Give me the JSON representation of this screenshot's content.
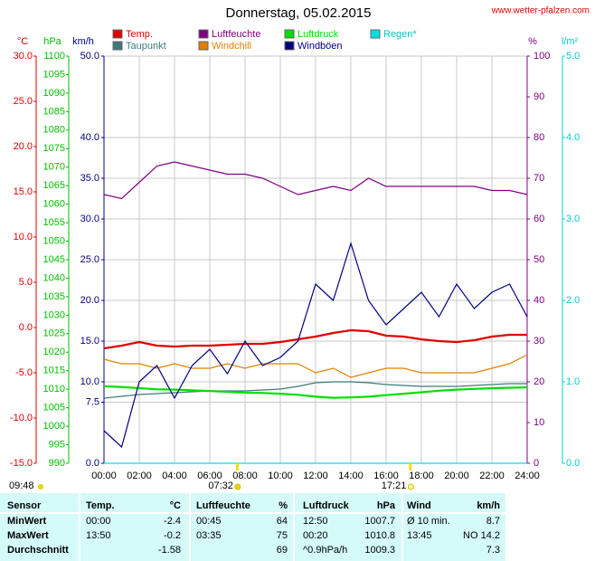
{
  "chart_data": {
    "type": "line",
    "title": "Donnerstag, 05.02.2015",
    "source": "www.wetter-pfalzen.com",
    "x": [
      0,
      1,
      2,
      3,
      4,
      5,
      6,
      7,
      8,
      9,
      10,
      11,
      12,
      13,
      14,
      15,
      16,
      17,
      18,
      19,
      20,
      21,
      22,
      23,
      24
    ],
    "xlim": [
      0,
      24
    ],
    "xticks": [
      {
        "value": 0,
        "label": "00:00"
      },
      {
        "value": 2,
        "label": "02:00"
      },
      {
        "value": 4,
        "label": "04:00"
      },
      {
        "value": 6,
        "label": "06:00"
      },
      {
        "value": 8,
        "label": "08:00"
      },
      {
        "value": 10,
        "label": "10:00"
      },
      {
        "value": 12,
        "label": "12:00"
      },
      {
        "value": 14,
        "label": "14:00"
      },
      {
        "value": 16,
        "label": "16:00"
      },
      {
        "value": 18,
        "label": "18:00"
      },
      {
        "value": 20,
        "label": "20:00"
      },
      {
        "value": 22,
        "label": "22:00"
      },
      {
        "value": 24,
        "label": "24:00"
      }
    ],
    "grid": true,
    "y_axes": [
      {
        "label": "°C",
        "color": "#e00000",
        "lim": [
          -15,
          30
        ],
        "ticks": [
          {
            "value": 30,
            "label": "30.0"
          },
          {
            "value": 25,
            "label": "25.0"
          },
          {
            "value": 20,
            "label": "20.0"
          },
          {
            "value": 15,
            "label": "15.0"
          },
          {
            "value": 10,
            "label": "10.0"
          },
          {
            "value": 5,
            "label": "5.0"
          },
          {
            "value": 0,
            "label": "0.0"
          },
          {
            "value": -5,
            "label": "-5.0"
          },
          {
            "value": -10,
            "label": "-10.0"
          },
          {
            "value": -15,
            "label": "-15.0"
          }
        ]
      },
      {
        "label": "hPa",
        "color": "#00c000",
        "lim": [
          990,
          1100
        ],
        "ticks": [
          1100,
          1095,
          1090,
          1085,
          1080,
          1075,
          1070,
          1065,
          1060,
          1055,
          1050,
          1045,
          1040,
          1035,
          1030,
          1025,
          1020,
          1015,
          1010,
          1005,
          1000,
          995,
          990
        ]
      },
      {
        "label": "km/h",
        "color": "#000080",
        "lim": [
          0,
          50
        ],
        "ticks": [
          {
            "value": 50,
            "label": "50.0"
          },
          {
            "value": 40,
            "label": "40.0"
          },
          {
            "value": 35,
            "label": "35.0"
          },
          {
            "value": 30,
            "label": "30.0"
          },
          {
            "value": 25,
            "label": "25.0"
          },
          {
            "value": 20,
            "label": "20.0"
          },
          {
            "value": 15,
            "label": "15.0"
          },
          {
            "value": 10,
            "label": "10.0"
          },
          7.5,
          {
            "value": 0,
            "label": "0.0"
          }
        ]
      },
      {
        "label": "%",
        "color": "#800080",
        "lim": [
          0,
          100
        ],
        "ticks": [
          100,
          90,
          80,
          70,
          60,
          50,
          40,
          30,
          20,
          10,
          0
        ]
      },
      {
        "label": "l/m²",
        "color": "#00d0d0",
        "lim": [
          0,
          5
        ],
        "ticks": [
          {
            "value": 5,
            "label": "5.0"
          },
          {
            "value": 4,
            "label": "4.0"
          },
          {
            "value": 3,
            "label": "3.0"
          },
          {
            "value": 2,
            "label": "2.0"
          },
          {
            "value": 1,
            "label": "1.0"
          },
          {
            "value": 0,
            "label": "0.0"
          }
        ]
      }
    ],
    "series": [
      {
        "name": "Temp.",
        "color": "#e00000",
        "axis": 0,
        "values": [
          -2.3,
          -2.0,
          -1.6,
          -2.0,
          -2.1,
          -2.0,
          -2.0,
          -1.9,
          -1.8,
          -1.8,
          -1.6,
          -1.3,
          -1.0,
          -0.6,
          -0.3,
          -0.4,
          -0.9,
          -1.0,
          -1.3,
          -1.5,
          -1.6,
          -1.4,
          -1.0,
          -0.8,
          -0.8
        ]
      },
      {
        "name": "Taupunkt",
        "color": "#3d7a7a",
        "axis": 0,
        "values": [
          -7.8,
          -7.6,
          -7.4,
          -7.3,
          -7.2,
          -7.1,
          -7.0,
          -7.0,
          -7.0,
          -6.9,
          -6.8,
          -6.5,
          -6.1,
          -6.0,
          -6.0,
          -6.1,
          -6.3,
          -6.4,
          -6.5,
          -6.5,
          -6.5,
          -6.4,
          -6.3,
          -6.2,
          -6.2
        ]
      },
      {
        "name": "Luftfeuchte",
        "color": "#800080",
        "axis": 3,
        "values": [
          66,
          65,
          69,
          73,
          74,
          73,
          72,
          71,
          71,
          70,
          68,
          66,
          67,
          68,
          67,
          70,
          68,
          68,
          68,
          68,
          68,
          68,
          67,
          67,
          66
        ]
      },
      {
        "name": "Windchill",
        "color": "#e08000",
        "axis": 0,
        "values": [
          -3.5,
          -4,
          -4,
          -4.5,
          -4,
          -4.5,
          -4.5,
          -4,
          -4.5,
          -4,
          -4,
          -4,
          -5,
          -4.5,
          -5.5,
          -5,
          -4.5,
          -4.5,
          -5,
          -5,
          -5,
          -5,
          -4.5,
          -4,
          -3
        ]
      },
      {
        "name": "Luftdruck",
        "color": "#00e000",
        "axis": 1,
        "values": [
          1010.8,
          1010.6,
          1010.3,
          1010.0,
          1009.9,
          1009.7,
          1009.5,
          1009.3,
          1009.1,
          1009.0,
          1008.8,
          1008.5,
          1008.0,
          1007.7,
          1007.8,
          1008.0,
          1008.4,
          1008.8,
          1009.2,
          1009.6,
          1009.9,
          1010.1,
          1010.3,
          1010.4,
          1010.5
        ]
      },
      {
        "name": "Windböen",
        "color": "#000080",
        "axis": 2,
        "values": [
          4,
          2,
          10,
          12,
          8,
          12,
          14,
          11,
          15,
          12,
          13,
          15,
          22,
          20,
          27,
          20,
          17,
          19,
          21,
          18,
          22,
          19,
          21,
          22,
          18
        ]
      },
      {
        "name": "Regen*",
        "color": "#00e0e0",
        "axis": 4,
        "values": [
          0,
          0,
          0,
          0,
          0,
          0,
          0,
          0,
          0,
          0,
          0,
          0,
          0,
          0,
          0,
          0,
          0,
          0,
          0,
          0,
          0,
          0,
          0,
          0,
          0
        ]
      }
    ],
    "sun": {
      "daylight": "09:48",
      "sunrise": {
        "value": 7.533,
        "label": "07:32"
      },
      "sunset": {
        "value": 17.35,
        "label": "17:21"
      }
    }
  },
  "table": {
    "header": [
      "Sensor",
      "Temp.",
      "°C",
      "Luftfeuchte",
      "%",
      "Luftdruck",
      "hPa",
      "Wind",
      "km/h"
    ],
    "rows": [
      [
        "MinWert",
        "00:00",
        "-2.4",
        "00:45",
        "64",
        "12:50",
        "1007.7",
        "Ø 10 min.",
        "8.7"
      ],
      [
        "MaxWert",
        "13:50",
        "-0.2",
        "03:35",
        "75",
        "00:20",
        "1010.8",
        "13:45",
        "NO 14.2"
      ],
      [
        "Durchschnitt",
        "",
        "-1.58",
        "",
        "69",
        "^0.9hPa/h",
        "1009.3",
        "",
        "7.3"
      ]
    ]
  }
}
